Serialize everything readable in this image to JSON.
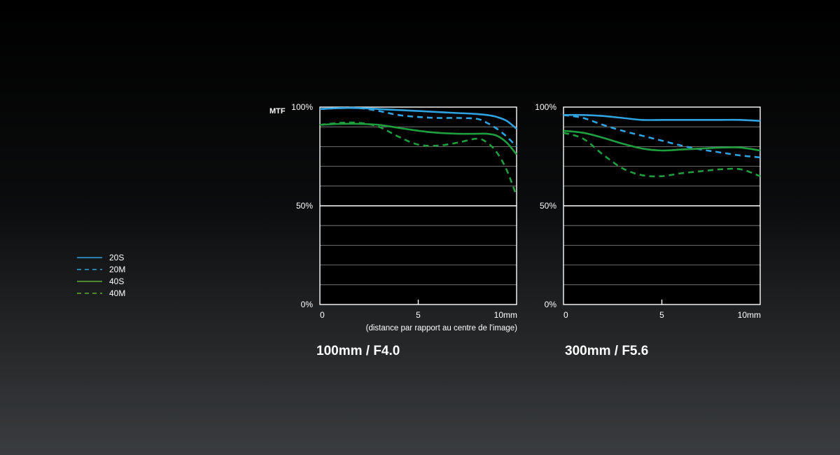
{
  "ylabel": "MTF",
  "distance_label": "(distance par rapport au centre de l'image)",
  "legend": [
    {
      "label": "20S",
      "color": "#2ea3e0",
      "dash": "solid"
    },
    {
      "label": "20M",
      "color": "#2ea3e0",
      "dash": "dashed"
    },
    {
      "label": "40S",
      "color": "#1e9e3e",
      "dash": "solid"
    },
    {
      "label": "40M",
      "color": "#1e9e3e",
      "dash": "dashed"
    }
  ],
  "chart_data": [
    {
      "type": "line",
      "title": "100mm / F4.0",
      "xlim": [
        0,
        10
      ],
      "ylim": [
        0,
        100
      ],
      "xticks": [
        "0",
        "5",
        "10mm"
      ],
      "yticks": [
        "0%",
        "50%",
        "100%"
      ],
      "grid": true,
      "series": [
        {
          "name": "20S",
          "x": [
            0,
            1,
            2,
            3,
            4,
            5,
            6,
            7,
            8,
            8.5,
            9,
            9.5,
            10
          ],
          "y": [
            99,
            99.5,
            99.5,
            99,
            98.5,
            98,
            97.5,
            97,
            96.5,
            96,
            95,
            93,
            89
          ]
        },
        {
          "name": "20M",
          "x": [
            0,
            1,
            2,
            3,
            4,
            5,
            6,
            7,
            8,
            8.5,
            9,
            9.5,
            10
          ],
          "y": [
            99,
            99.5,
            99.5,
            98,
            96,
            95,
            94.5,
            94.5,
            94,
            92,
            89,
            85,
            80
          ]
        },
        {
          "name": "40S",
          "x": [
            0,
            1,
            2,
            3,
            4,
            5,
            6,
            7,
            8,
            8.5,
            9,
            9.5,
            10
          ],
          "y": [
            91,
            91.5,
            91.5,
            91,
            89.5,
            88,
            87,
            86.5,
            86.5,
            86.5,
            85.5,
            82,
            76
          ]
        },
        {
          "name": "40M",
          "x": [
            0,
            1,
            2,
            3,
            4,
            5,
            6,
            7,
            8,
            8.5,
            9,
            9.5,
            10
          ],
          "y": [
            91,
            92,
            92,
            90,
            85,
            81,
            80.5,
            82,
            84,
            82,
            77,
            68,
            55
          ]
        }
      ]
    },
    {
      "type": "line",
      "title": "300mm / F5.6",
      "xlim": [
        0,
        10
      ],
      "ylim": [
        0,
        100
      ],
      "xticks": [
        "0",
        "5",
        "10mm"
      ],
      "yticks": [
        "0%",
        "50%",
        "100%"
      ],
      "grid": true,
      "series": [
        {
          "name": "20S",
          "x": [
            0,
            1,
            2,
            3,
            4,
            5,
            6,
            7,
            8,
            9,
            10
          ],
          "y": [
            96,
            96,
            95.5,
            94.5,
            93.5,
            93.5,
            93.5,
            93.5,
            93.5,
            93.5,
            93
          ]
        },
        {
          "name": "20M",
          "x": [
            0,
            1,
            2,
            3,
            4,
            5,
            6,
            7,
            8,
            9,
            10
          ],
          "y": [
            96,
            94.5,
            91,
            88,
            85.5,
            83,
            80.5,
            78.5,
            77,
            75.5,
            74.5
          ]
        },
        {
          "name": "40S",
          "x": [
            0,
            1,
            2,
            3,
            4,
            5,
            6,
            7,
            8,
            9,
            10
          ],
          "y": [
            88,
            87,
            84.5,
            81.5,
            79,
            78,
            78.5,
            79,
            79.5,
            79.5,
            78
          ]
        },
        {
          "name": "40M",
          "x": [
            0,
            1,
            2,
            3,
            4,
            5,
            6,
            7,
            8,
            9,
            10
          ],
          "y": [
            87,
            84,
            76,
            69,
            65.5,
            65,
            66.5,
            67.5,
            68.5,
            68.5,
            65
          ]
        }
      ]
    }
  ]
}
